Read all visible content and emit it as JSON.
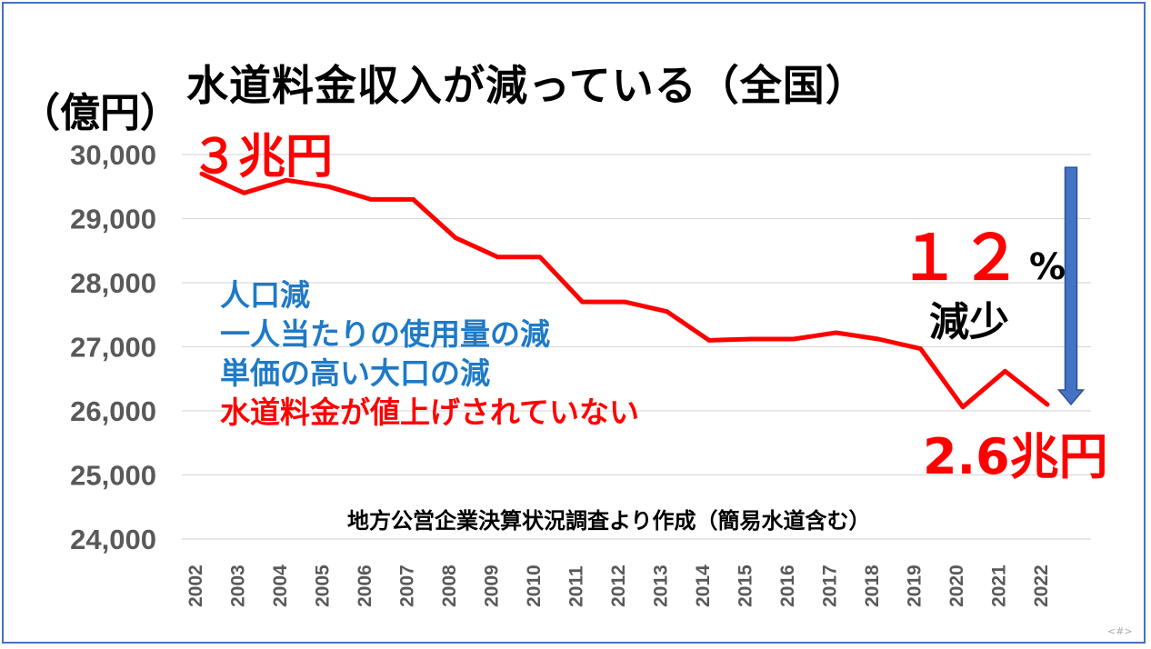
{
  "title": "水道料金収入が減っている（全国）",
  "unit_label": "（億円）",
  "annotations": {
    "start": "３兆円",
    "end": "2.6兆円",
    "percent_number": "１２",
    "percent_sign": "%",
    "decrease": "減少"
  },
  "factors": [
    {
      "text": "人口減",
      "color": "#1f7ac7"
    },
    {
      "text": "一人当たりの使用量の減",
      "color": "#1f7ac7"
    },
    {
      "text": "単価の高い大口の減",
      "color": "#1f7ac7"
    },
    {
      "text": "水道料金が値上げされていない",
      "color": "#ff0000"
    }
  ],
  "source": "地方公営企業決算状況調査より作成（簡易水道含む）",
  "page_number": "<#>",
  "chart_data": {
    "type": "line",
    "x": [
      "2002",
      "2003",
      "2004",
      "2005",
      "2006",
      "2007",
      "2008",
      "2009",
      "2010",
      "2011",
      "2012",
      "2013",
      "2014",
      "2015",
      "2016",
      "2017",
      "2018",
      "2019",
      "2020",
      "2021",
      "2022"
    ],
    "series": [
      {
        "values": [
          29700,
          29400,
          29600,
          29500,
          29300,
          29300,
          28700,
          28400,
          28400,
          27700,
          27700,
          27550,
          27100,
          27120,
          27120,
          27220,
          27120,
          26970,
          26060,
          26620,
          26100
        ],
        "color": "#ff0000"
      }
    ],
    "ylim": [
      24000,
      30000
    ],
    "yticks": [
      "30,000",
      "29,000",
      "28,000",
      "27,000",
      "26,000",
      "25,000",
      "24,000"
    ],
    "ytick_values": [
      30000,
      29000,
      28000,
      27000,
      26000,
      25000,
      24000
    ],
    "grid": true,
    "legend": "none",
    "arrow_color": "#4472c4",
    "arrow_from": 29800,
    "arrow_to": 26100
  }
}
